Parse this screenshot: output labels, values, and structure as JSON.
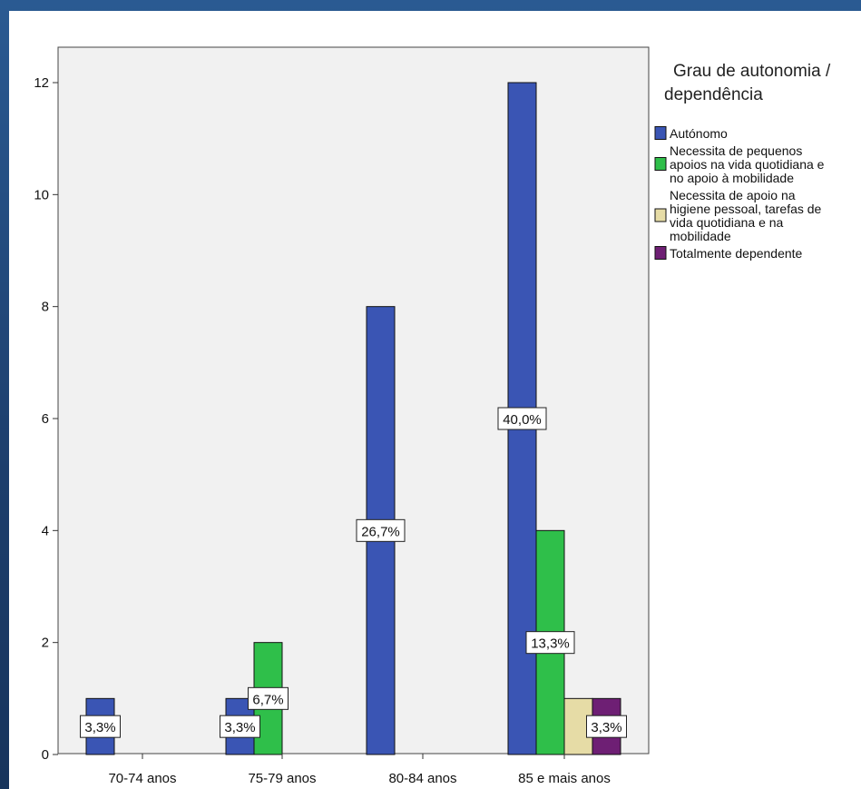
{
  "chart_data": {
    "type": "bar",
    "categories": [
      "70-74 anos",
      "75-79 anos",
      "80-84 anos",
      "85 e mais anos"
    ],
    "series": [
      {
        "name": "Autónomo",
        "values": [
          1,
          1,
          8,
          12
        ],
        "color": "#3a55b4"
      },
      {
        "name": "Necessita de pequenos apoios na vida quotidiana e no apoio à mobilidade",
        "values": [
          0,
          2,
          0,
          4
        ],
        "color": "#2fbf4a"
      },
      {
        "name": "Necessita de apoio na higiene pessoal, tarefas de vida quotidiana e na mobilidade",
        "values": [
          0,
          0,
          0,
          1
        ],
        "color": "#e6dca6"
      },
      {
        "name": "Totalmente dependente",
        "values": [
          0,
          0,
          0,
          1
        ],
        "color": "#6e1f74"
      }
    ],
    "ylim": [
      0,
      12
    ],
    "yticks": [
      0,
      2,
      4,
      6,
      8,
      10,
      12
    ],
    "grid": false,
    "legend": {
      "title_lines": [
        "Grau de autonomia /",
        "dependência"
      ],
      "placement": "right",
      "entries": [
        {
          "lines": [
            "Autónomo"
          ]
        },
        {
          "lines": [
            "Necessita de pequenos",
            "apoios na vida quotidiana e",
            "no apoio à mobilidade"
          ]
        },
        {
          "lines": [
            "Necessita de apoio na",
            "higiene pessoal, tarefas de",
            "vida quotidiana e na",
            "mobilidade"
          ]
        },
        {
          "lines": [
            "Totalmente dependente"
          ]
        }
      ]
    },
    "data_labels": [
      {
        "category": 0,
        "series": 0,
        "text": "3,3%"
      },
      {
        "category": 1,
        "series": 0,
        "text": "3,3%"
      },
      {
        "category": 1,
        "series": 1,
        "text": "6,7%"
      },
      {
        "category": 2,
        "series": 0,
        "text": "26,7%"
      },
      {
        "category": 3,
        "series": 0,
        "text": "40,0%"
      },
      {
        "category": 3,
        "series": 1,
        "text": "13,3%"
      },
      {
        "category": 3,
        "series": 3,
        "text": "3,3%"
      }
    ]
  }
}
